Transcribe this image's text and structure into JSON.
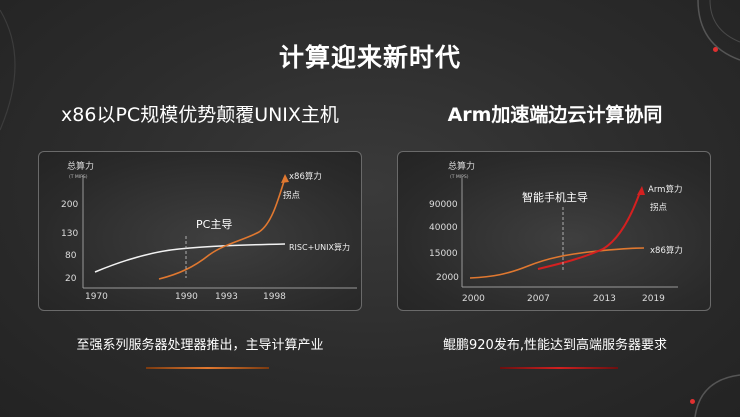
{
  "slide": {
    "title": "计算迎来新时代",
    "accent_color": "#e03030"
  },
  "left": {
    "subtitle": "x86以PC规模优势颠覆UNIX主机",
    "caption": "至强系列服务器处理器推出，主导计算产业",
    "chart_data": {
      "type": "line",
      "ylabel": "总算力",
      "ylabel_unit": "(T MIPS)",
      "x_ticks": [
        "1970",
        "1990",
        "1993",
        "1998"
      ],
      "y_ticks": [
        "20",
        "80",
        "130",
        "200"
      ],
      "series": [
        {
          "name": "RISC+UNIX算力",
          "color": "#ffffff",
          "points": [
            [
              1970,
              35
            ],
            [
              1978,
              60
            ],
            [
              1985,
              80
            ],
            [
              1990,
              95
            ],
            [
              1993,
              102
            ],
            [
              1998,
              108
            ],
            [
              2002,
              110
            ]
          ]
        },
        {
          "name": "x86算力",
          "color": "#e07830",
          "points": [
            [
              1985,
              20
            ],
            [
              1990,
              45
            ],
            [
              1993,
              95
            ],
            [
              1996,
              140
            ],
            [
              1998,
              190
            ],
            [
              1999,
              240
            ]
          ]
        }
      ],
      "annotations": [
        "PC主导",
        "拐点"
      ]
    }
  },
  "right": {
    "subtitle": "Arm加速端边云计算协同",
    "caption": "鲲鹏920发布,性能达到高端服务器要求",
    "chart_data": {
      "type": "line",
      "ylabel": "总算力",
      "ylabel_unit": "(T MIPS)",
      "x_ticks": [
        "2000",
        "2007",
        "2013",
        "2019"
      ],
      "y_ticks": [
        "2000",
        "15000",
        "40000",
        "90000"
      ],
      "series": [
        {
          "name": "x86算力",
          "color": "#e07830",
          "points": [
            [
              2000,
              2000
            ],
            [
              2004,
              5000
            ],
            [
              2007,
              10000
            ],
            [
              2010,
              13000
            ],
            [
              2013,
              15000
            ],
            [
              2019,
              16500
            ]
          ]
        },
        {
          "name": "Arm算力",
          "color": "#e02020",
          "points": [
            [
              2007,
              3000
            ],
            [
              2010,
              7000
            ],
            [
              2013,
              15000
            ],
            [
              2016,
              40000
            ],
            [
              2019,
              95000
            ]
          ]
        }
      ],
      "annotations": [
        "智能手机主导",
        "拐点"
      ]
    }
  }
}
